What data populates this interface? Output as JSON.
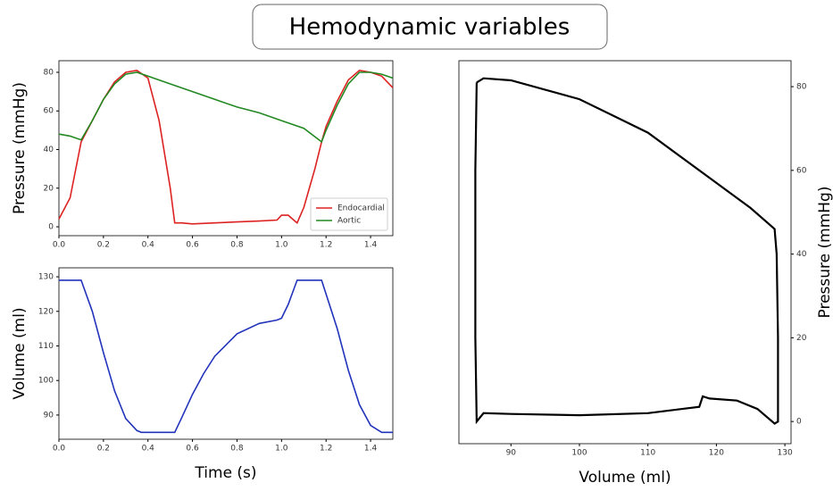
{
  "title": "Hemodynamic variables",
  "chart_data": [
    {
      "type": "line",
      "y_label": "Pressure (mmHg)",
      "xlim": [
        0,
        1.5
      ],
      "ylim": [
        -4.6,
        86
      ],
      "xticks": [
        {
          "value": 0,
          "label": "0.0"
        },
        0.2,
        0.4,
        0.6,
        0.8,
        {
          "value": 1,
          "label": "1.0"
        },
        1.2,
        1.4
      ],
      "yticks": [
        0,
        20,
        40,
        60,
        80
      ],
      "legend": "lower-right",
      "series": [
        {
          "name": "Endocardial",
          "color": "#dd2222",
          "x": [
            0,
            0.05,
            0.1,
            0.15,
            0.2,
            0.25,
            0.3,
            0.35,
            0.4,
            0.45,
            0.5,
            0.52,
            0.55,
            0.6,
            0.7,
            0.8,
            0.9,
            0.98,
            1.0,
            1.03,
            1.06,
            1.07,
            1.1,
            1.15,
            1.18,
            1.2,
            1.25,
            1.3,
            1.35,
            1.4,
            1.45,
            1.5
          ],
          "values": [
            4,
            15,
            44,
            55,
            66,
            75,
            80,
            81,
            77,
            55,
            20,
            2,
            2,
            1.5,
            2,
            2.5,
            3,
            3.5,
            6,
            6,
            3,
            2,
            10,
            30,
            44,
            52,
            65,
            76,
            81,
            80,
            78,
            72
          ]
        },
        {
          "name": "Aortic",
          "color": "#228822",
          "x": [
            0,
            0.05,
            0.1,
            0.15,
            0.2,
            0.25,
            0.3,
            0.35,
            0.4,
            0.5,
            0.6,
            0.7,
            0.8,
            0.9,
            1.0,
            1.1,
            1.18,
            1.2,
            1.25,
            1.3,
            1.35,
            1.4,
            1.45,
            1.5
          ],
          "values": [
            48,
            47,
            45,
            55,
            66,
            74,
            79,
            80,
            78,
            74,
            70,
            66,
            62,
            59,
            55,
            51,
            44,
            50,
            63,
            74,
            80,
            80,
            79,
            77
          ]
        }
      ]
    },
    {
      "type": "line",
      "x_label": "Time (s)",
      "y_label": "Volume (ml)",
      "xlim": [
        0,
        1.5
      ],
      "ylim": [
        83,
        132.6
      ],
      "xticks": [
        {
          "value": 0,
          "label": "0.0"
        },
        0.2,
        0.4,
        0.6,
        0.8,
        {
          "value": 1,
          "label": "1.0"
        },
        1.2,
        1.4
      ],
      "yticks": [
        90,
        100,
        110,
        120,
        130
      ],
      "series": [
        {
          "color": "#2233bb",
          "x": [
            0,
            0.1,
            0.15,
            0.2,
            0.25,
            0.3,
            0.35,
            0.37,
            0.45,
            0.52,
            0.55,
            0.6,
            0.65,
            0.7,
            0.8,
            0.9,
            0.98,
            1.0,
            1.03,
            1.07,
            1.18,
            1.2,
            1.25,
            1.3,
            1.35,
            1.4,
            1.45,
            1.5
          ],
          "values": [
            129,
            129,
            120,
            108,
            97,
            89,
            85.5,
            85,
            85,
            85,
            89,
            96,
            102,
            107,
            113.5,
            116.5,
            117.5,
            118,
            122,
            129,
            129,
            125,
            115,
            103,
            93,
            87,
            85,
            85
          ]
        }
      ]
    },
    {
      "type": "line",
      "x_label": "Volume (ml)",
      "y_label": "Pressure (mmHg)",
      "y_axis_side": "right",
      "xlim": [
        82.4,
        130.9
      ],
      "ylim": [
        -5.3,
        86.2
      ],
      "xticks": [
        90,
        100,
        110,
        120,
        130
      ],
      "yticks": [
        0,
        20,
        40,
        60,
        80
      ],
      "series": [
        {
          "color": "#000000",
          "x": [
            85,
            86,
            90,
            100,
            110,
            120,
            125,
            128.5,
            128.8,
            129,
            129,
            128.5,
            126,
            123,
            119,
            118,
            117.5,
            110,
            100,
            90,
            86,
            85,
            84.8,
            84.8,
            85
          ],
          "values": [
            81,
            82,
            81.5,
            77,
            69,
            57,
            51,
            46,
            40,
            20,
            0,
            -0.5,
            3,
            5,
            5.5,
            6,
            3.5,
            2,
            1.5,
            1.8,
            2,
            0,
            20,
            60,
            81
          ]
        }
      ]
    }
  ]
}
